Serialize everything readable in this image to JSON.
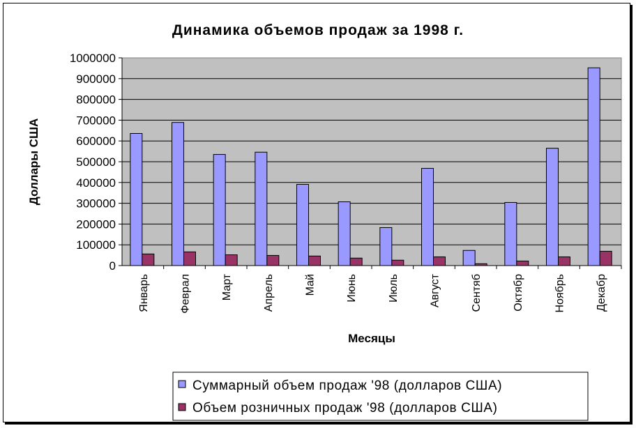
{
  "chart_data": {
    "type": "bar",
    "title": "Динамика объемов  продаж за 1998 г.",
    "xlabel": "Месяцы",
    "ylabel": "Доллары США",
    "categories": [
      "Январь",
      "Феврал",
      "Март",
      "Апрель",
      "Май",
      "Июнь",
      "Июль",
      "Август",
      "Сентяб",
      "Октябр",
      "Ноябрь",
      "Декабр"
    ],
    "ylim": [
      0,
      1000000
    ],
    "yticks": [
      "0",
      "100000",
      "200000",
      "300000",
      "400000",
      "500000",
      "600000",
      "700000",
      "800000",
      "900000",
      "1000000"
    ],
    "grid": true,
    "legend_placement": "bottom",
    "plot_background": "#C0C0C0",
    "series": [
      {
        "name": "Суммарный объем продаж '98 (долларов США)",
        "color": "#9999FF",
        "values": [
          636000,
          689000,
          535000,
          546000,
          391000,
          307000,
          183000,
          468000,
          73000,
          304000,
          565000,
          952000
        ]
      },
      {
        "name": "Объем розничных продаж '98 (долларов США)",
        "color": "#993366",
        "values": [
          56000,
          66000,
          52000,
          49000,
          46000,
          36000,
          26000,
          42000,
          9000,
          22000,
          42000,
          69000
        ]
      }
    ]
  }
}
